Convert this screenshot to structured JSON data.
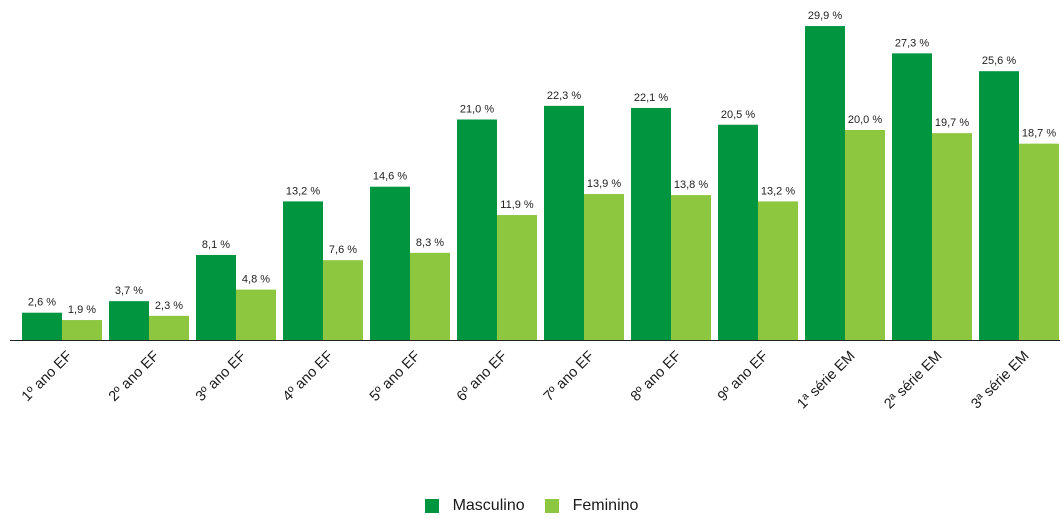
{
  "chart_data": {
    "type": "bar",
    "categories": [
      "1º ano EF",
      "2º ano EF",
      "3º ano EF",
      "4º ano EF",
      "5º ano EF",
      "6º ano EF",
      "7º ano EF",
      "8º ano EF",
      "9º ano EF",
      "1ª série EM",
      "2ª série EM",
      "3ª série EM"
    ],
    "series": [
      {
        "name": "Masculino",
        "color": "#00963f",
        "values": [
          2.6,
          3.7,
          8.1,
          13.2,
          14.6,
          21.0,
          22.3,
          22.1,
          20.5,
          29.9,
          27.3,
          25.6
        ],
        "labels": [
          "2,6 %",
          "3,7 %",
          "8,1 %",
          "13,2 %",
          "14,6 %",
          "21,0 %",
          "22,3 %",
          "22,1 %",
          "20,5 %",
          "29,9 %",
          "27,3 %",
          "25,6 %"
        ]
      },
      {
        "name": "Feminino",
        "color": "#8dc63f",
        "values": [
          1.9,
          2.3,
          4.8,
          7.6,
          8.3,
          11.9,
          13.9,
          13.8,
          13.2,
          20.0,
          19.7,
          18.7
        ],
        "labels": [
          "1,9 %",
          "2,3 %",
          "4,8 %",
          "7,6 %",
          "8,3 %",
          "11,9 %",
          "13,9 %",
          "13,8 %",
          "13,2 %",
          "20,0 %",
          "19,7 %",
          "18,7 %"
        ]
      }
    ],
    "title": "",
    "xlabel": "",
    "ylabel": "",
    "ylim": [
      0,
      30
    ],
    "grid": false,
    "legend_position": "bottom-center"
  }
}
